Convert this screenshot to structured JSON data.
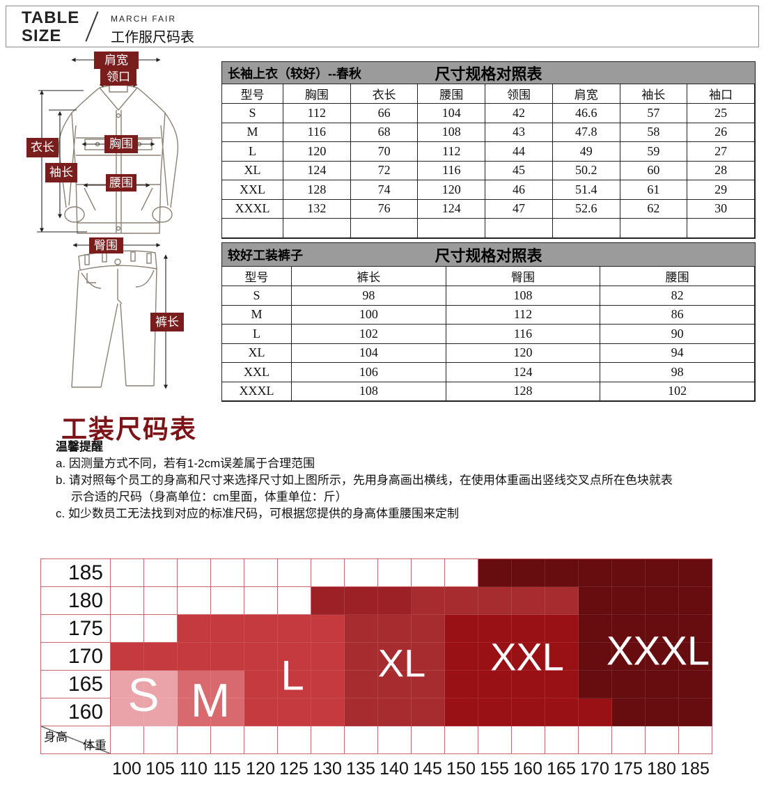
{
  "header": {
    "logo_line1": "TABLE",
    "logo_line2": "SIZE",
    "brand": "MARCH FAIR",
    "subtitle": "工作服尺码表"
  },
  "diagram": {
    "labels": {
      "shoulder": "肩宽",
      "collar": "领口",
      "jacket_length": "衣长",
      "sleeve_length": "袖长",
      "chest": "胸围",
      "waist": "腰围",
      "hip": "臀围",
      "pants_length": "裤长"
    },
    "label_bg": "#7a1d1d"
  },
  "table1": {
    "title": "长袖上衣（较好）--春秋",
    "title_right": "尺寸规格对照表",
    "columns": [
      "型号",
      "胸围",
      "衣长",
      "腰围",
      "领围",
      "肩宽",
      "袖长",
      "袖口"
    ],
    "rows": [
      [
        "S",
        "112",
        "66",
        "104",
        "42",
        "46.6",
        "57",
        "25"
      ],
      [
        "M",
        "116",
        "68",
        "108",
        "43",
        "47.8",
        "58",
        "26"
      ],
      [
        "L",
        "120",
        "70",
        "112",
        "44",
        "49",
        "59",
        "27"
      ],
      [
        "XL",
        "124",
        "72",
        "116",
        "45",
        "50.2",
        "60",
        "28"
      ],
      [
        "XXL",
        "128",
        "74",
        "120",
        "46",
        "51.4",
        "61",
        "29"
      ],
      [
        "XXXL",
        "132",
        "76",
        "124",
        "47",
        "52.6",
        "62",
        "30"
      ]
    ],
    "has_empty_row": true
  },
  "table2": {
    "title": "较好工装裤子",
    "title_right": "尺寸规格对照表",
    "columns": [
      "型号",
      "裤长",
      "臀围",
      "腰围"
    ],
    "rows": [
      [
        "S",
        "98",
        "108",
        "82"
      ],
      [
        "M",
        "100",
        "112",
        "86"
      ],
      [
        "L",
        "102",
        "116",
        "90"
      ],
      [
        "XL",
        "104",
        "120",
        "94"
      ],
      [
        "XXL",
        "106",
        "124",
        "98"
      ],
      [
        "XXXL",
        "108",
        "128",
        "102"
      ]
    ],
    "has_empty_row": false
  },
  "section_title": "工装尺码表",
  "notes": {
    "heading": "温馨提醒",
    "lines": [
      "a. 因测量方式不同，若有1-2cm误差属于合理范围",
      "b. 请对照每个员工的身高和尺寸来选择尺寸如上图所示，先用身高画出横线，在使用体重画出竖线交叉点所在色块就表",
      "示合适的尺码（身高单位：cm里面，体重单位：斤）",
      "c. 如少数员工无法找到对应的标准尺码，可根据您提供的身高体重腰围来定制"
    ]
  },
  "chart_data": {
    "type": "heatmap",
    "x_label": "体重",
    "y_label": "身高",
    "x_ticks": [
      "100",
      "105",
      "110",
      "115",
      "120",
      "125",
      "130",
      "135",
      "140",
      "145",
      "150",
      "155",
      "160",
      "165",
      "170",
      "175",
      "180",
      "185"
    ],
    "y_ticks": [
      "185",
      "180",
      "175",
      "170",
      "165",
      "160"
    ],
    "sizes": [
      "S",
      "M",
      "L",
      "XL",
      "XXL",
      "XXXL"
    ],
    "colors": {
      "w": "#ffffff",
      "s": "#e9a3a9",
      "m": "#d8696e",
      "l": "#c43a3e",
      "xl": "#a72c2f",
      "xxl": "#9a1115",
      "xxl2": "#9c2126",
      "xxxl": "#670d10"
    },
    "cells": [
      [
        "w",
        "w",
        "w",
        "w",
        "w",
        "w",
        "w",
        "w",
        "w",
        "w",
        "w",
        "xxxl",
        "xxxl",
        "xxxl",
        "xxxl",
        "xxxl",
        "xxxl",
        "xxxl"
      ],
      [
        "w",
        "w",
        "w",
        "w",
        "w",
        "w",
        "xxl2",
        "xxl2",
        "xxl2",
        "xl",
        "xl",
        "xl",
        "xl",
        "xl",
        "xxxl",
        "xxxl",
        "xxxl",
        "xxxl"
      ],
      [
        "w",
        "w",
        "l",
        "l",
        "l",
        "l",
        "l",
        "xl",
        "xl",
        "xl",
        "xxl",
        "xxl",
        "xxl",
        "xxl",
        "xxxl",
        "xxxl",
        "xxxl",
        "xxxl"
      ],
      [
        "l",
        "l",
        "l",
        "l",
        "l",
        "l",
        "l",
        "xl",
        "xl",
        "xl",
        "xxl",
        "xxl",
        "xxl",
        "xxl",
        "xxxl",
        "xxxl",
        "xxxl",
        "xxxl"
      ],
      [
        "s",
        "s",
        "m",
        "m",
        "l",
        "l",
        "l",
        "xl",
        "xl",
        "xl",
        "xxl",
        "xxl",
        "xxl",
        "xxl",
        "xxxl",
        "xxxl",
        "xxxl",
        "xxxl"
      ],
      [
        "s",
        "s",
        "m",
        "m",
        "l",
        "l",
        "l",
        "xl",
        "xl",
        "xl",
        "xxl",
        "xxl",
        "xxl",
        "xxl",
        "xxl",
        "xxxl",
        "xxxl",
        "xxxl"
      ]
    ]
  }
}
